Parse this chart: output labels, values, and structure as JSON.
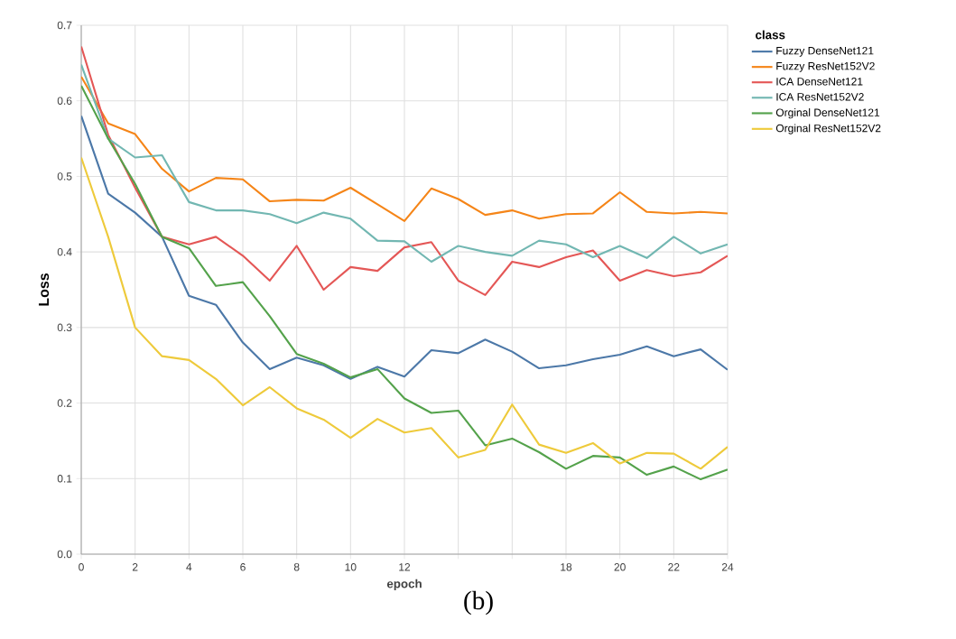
{
  "chart_data": {
    "type": "line",
    "xlabel": "epoch",
    "ylabel": "Loss",
    "legend_title": "class",
    "legend": "top right",
    "grid": true,
    "line_style": "solid",
    "x": [
      0,
      1,
      2,
      3,
      4,
      5,
      6,
      7,
      8,
      9,
      10,
      11,
      12,
      13,
      14,
      15,
      16,
      17,
      18,
      19,
      20,
      21,
      22,
      23,
      24
    ],
    "xlim": [
      0,
      24
    ],
    "xticks": [
      0,
      2,
      4,
      6,
      8,
      10,
      12,
      {
        "value": 14,
        "label": null
      },
      {
        "value": 16,
        "label": null
      },
      18,
      20,
      22,
      24
    ],
    "ylim": [
      0,
      0.7
    ],
    "yticks": [
      {
        "value": 0,
        "label": "0.0"
      },
      {
        "value": 0.1,
        "label": "0.1"
      },
      {
        "value": 0.2,
        "label": "0.2"
      },
      {
        "value": 0.3,
        "label": "0.3"
      },
      {
        "value": 0.4,
        "label": "0.4"
      },
      {
        "value": 0.5,
        "label": "0.5"
      },
      {
        "value": 0.6,
        "label": "0.6"
      },
      {
        "value": 0.7,
        "label": "0.7"
      }
    ],
    "annotations": [
      "(b)"
    ],
    "series": [
      {
        "name": "Fuzzy DenseNet121",
        "color": "#4c78a8",
        "values": [
          0.58,
          0.477,
          0.452,
          0.42,
          0.342,
          0.33,
          0.28,
          0.245,
          0.26,
          0.25,
          0.232,
          0.248,
          0.235,
          0.27,
          0.266,
          0.284,
          0.268,
          0.246,
          0.25,
          0.258,
          0.264,
          0.275,
          0.262,
          0.271,
          0.244
        ]
      },
      {
        "name": "Fuzzy ResNet152V2",
        "color": "#f58518",
        "values": [
          0.632,
          0.57,
          0.556,
          0.51,
          0.48,
          0.498,
          0.496,
          0.467,
          0.469,
          0.468,
          0.485,
          0.463,
          0.441,
          0.484,
          0.47,
          0.449,
          0.455,
          0.444,
          0.45,
          0.451,
          0.479,
          0.453,
          0.451,
          0.453,
          0.451
        ]
      },
      {
        "name": "ICA DenseNet121",
        "color": "#e45756",
        "values": [
          0.672,
          0.555,
          0.485,
          0.42,
          0.41,
          0.42,
          0.395,
          0.362,
          0.408,
          0.35,
          0.38,
          0.375,
          0.406,
          0.413,
          0.362,
          0.343,
          0.387,
          0.38,
          0.393,
          0.402,
          0.362,
          0.376,
          0.368,
          0.373,
          0.395
        ]
      },
      {
        "name": "ICA ResNet152V2",
        "color": "#72b7b2",
        "values": [
          0.648,
          0.55,
          0.525,
          0.528,
          0.466,
          0.455,
          0.455,
          0.45,
          0.438,
          0.452,
          0.444,
          0.415,
          0.414,
          0.387,
          0.408,
          0.4,
          0.395,
          0.415,
          0.41,
          0.393,
          0.408,
          0.392,
          0.42,
          0.398,
          0.41
        ]
      },
      {
        "name": "Orginal DenseNet121",
        "color": "#54a24b",
        "values": [
          0.62,
          0.55,
          0.49,
          0.42,
          0.405,
          0.355,
          0.36,
          0.315,
          0.265,
          0.252,
          0.234,
          0.245,
          0.206,
          0.187,
          0.19,
          0.144,
          0.153,
          0.135,
          0.113,
          0.13,
          0.128,
          0.105,
          0.116,
          0.099,
          0.112
        ]
      },
      {
        "name": "Orginal ResNet152V2",
        "color": "#eeca3b",
        "values": [
          0.525,
          0.42,
          0.3,
          0.262,
          0.257,
          0.232,
          0.197,
          0.221,
          0.193,
          0.178,
          0.154,
          0.179,
          0.161,
          0.167,
          0.128,
          0.138,
          0.198,
          0.145,
          0.134,
          0.147,
          0.12,
          0.134,
          0.133,
          0.113,
          0.142
        ]
      }
    ]
  }
}
